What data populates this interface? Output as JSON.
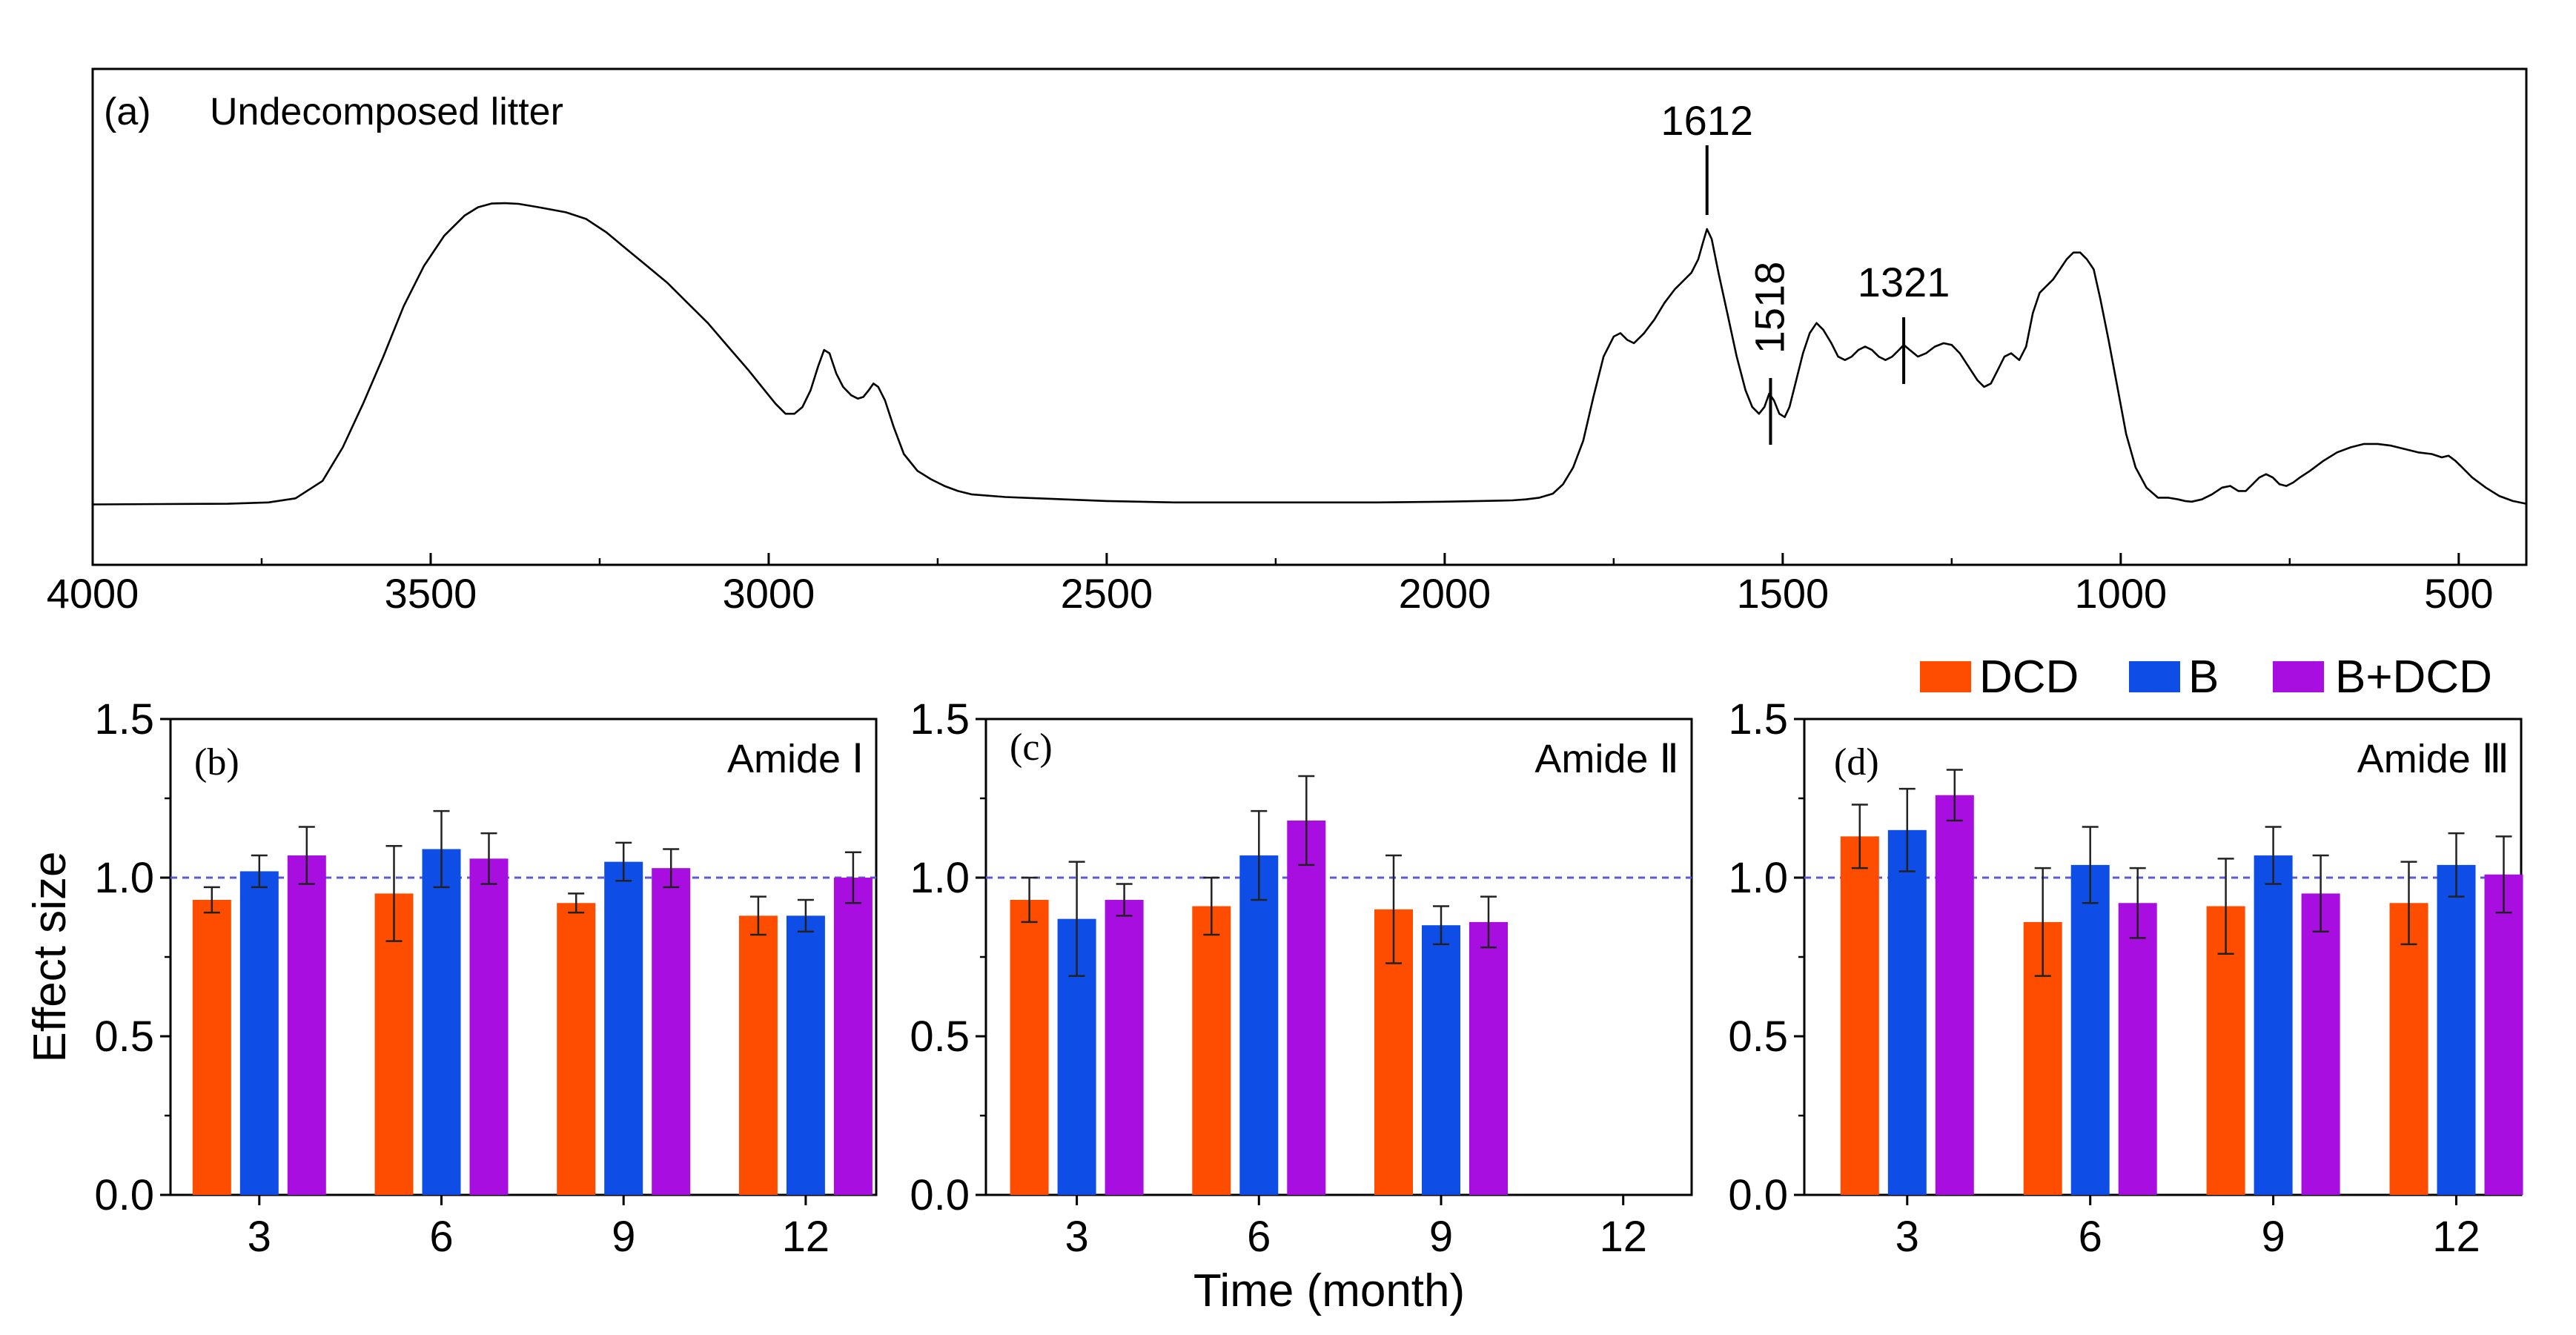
{
  "chart_data": [
    {
      "panel": "a",
      "type": "line",
      "panel_label": "(a)",
      "title": "Undecomposed litter",
      "xlim": [
        4000,
        400
      ],
      "x_ticks": [
        4000,
        3500,
        3000,
        2500,
        2000,
        1500,
        1000,
        500
      ],
      "series": [
        {
          "name": "Undecomposed litter spectrum",
          "points": [
            [
              4000,
              0.01
            ],
            [
              3900,
              0.011
            ],
            [
              3800,
              0.012
            ],
            [
              3740,
              0.016
            ],
            [
              3700,
              0.028
            ],
            [
              3660,
              0.08
            ],
            [
              3630,
              0.18
            ],
            [
              3600,
              0.31
            ],
            [
              3570,
              0.45
            ],
            [
              3540,
              0.6
            ],
            [
              3510,
              0.72
            ],
            [
              3480,
              0.81
            ],
            [
              3450,
              0.87
            ],
            [
              3430,
              0.895
            ],
            [
              3410,
              0.906
            ],
            [
              3390,
              0.907
            ],
            [
              3370,
              0.905
            ],
            [
              3340,
              0.895
            ],
            [
              3300,
              0.88
            ],
            [
              3270,
              0.86
            ],
            [
              3240,
              0.82
            ],
            [
              3210,
              0.77
            ],
            [
              3180,
              0.72
            ],
            [
              3150,
              0.67
            ],
            [
              3120,
              0.61
            ],
            [
              3090,
              0.55
            ],
            [
              3060,
              0.48
            ],
            [
              3030,
              0.41
            ],
            [
              3010,
              0.36
            ],
            [
              2990,
              0.31
            ],
            [
              2975,
              0.28
            ],
            [
              2962,
              0.28
            ],
            [
              2950,
              0.3
            ],
            [
              2938,
              0.35
            ],
            [
              2927,
              0.42
            ],
            [
              2918,
              0.47
            ],
            [
              2910,
              0.46
            ],
            [
              2900,
              0.4
            ],
            [
              2890,
              0.36
            ],
            [
              2878,
              0.335
            ],
            [
              2868,
              0.325
            ],
            [
              2860,
              0.33
            ],
            [
              2852,
              0.35
            ],
            [
              2845,
              0.37
            ],
            [
              2838,
              0.36
            ],
            [
              2828,
              0.32
            ],
            [
              2815,
              0.24
            ],
            [
              2800,
              0.16
            ],
            [
              2780,
              0.11
            ],
            [
              2760,
              0.085
            ],
            [
              2740,
              0.065
            ],
            [
              2720,
              0.05
            ],
            [
              2700,
              0.04
            ],
            [
              2650,
              0.032
            ],
            [
              2600,
              0.028
            ],
            [
              2500,
              0.02
            ],
            [
              2400,
              0.016
            ],
            [
              2300,
              0.016
            ],
            [
              2200,
              0.016
            ],
            [
              2100,
              0.016
            ],
            [
              2000,
              0.018
            ],
            [
              1950,
              0.02
            ],
            [
              1900,
              0.022
            ],
            [
              1880,
              0.025
            ],
            [
              1860,
              0.03
            ],
            [
              1840,
              0.042
            ],
            [
              1825,
              0.07
            ],
            [
              1810,
              0.12
            ],
            [
              1795,
              0.2
            ],
            [
              1780,
              0.33
            ],
            [
              1765,
              0.45
            ],
            [
              1750,
              0.51
            ],
            [
              1740,
              0.52
            ],
            [
              1730,
              0.5
            ],
            [
              1720,
              0.49
            ],
            [
              1705,
              0.52
            ],
            [
              1690,
              0.56
            ],
            [
              1675,
              0.61
            ],
            [
              1660,
              0.65
            ],
            [
              1645,
              0.68
            ],
            [
              1635,
              0.7
            ],
            [
              1625,
              0.74
            ],
            [
              1618,
              0.79
            ],
            [
              1612,
              0.83
            ],
            [
              1605,
              0.8
            ],
            [
              1595,
              0.7
            ],
            [
              1582,
              0.58
            ],
            [
              1568,
              0.45
            ],
            [
              1555,
              0.35
            ],
            [
              1545,
              0.3
            ],
            [
              1535,
              0.28
            ],
            [
              1527,
              0.3
            ],
            [
              1520,
              0.34
            ],
            [
              1513,
              0.32
            ],
            [
              1505,
              0.28
            ],
            [
              1497,
              0.27
            ],
            [
              1490,
              0.3
            ],
            [
              1480,
              0.38
            ],
            [
              1470,
              0.46
            ],
            [
              1460,
              0.52
            ],
            [
              1450,
              0.55
            ],
            [
              1440,
              0.53
            ],
            [
              1428,
              0.49
            ],
            [
              1418,
              0.45
            ],
            [
              1408,
              0.44
            ],
            [
              1398,
              0.45
            ],
            [
              1388,
              0.47
            ],
            [
              1378,
              0.48
            ],
            [
              1368,
              0.47
            ],
            [
              1358,
              0.45
            ],
            [
              1348,
              0.44
            ],
            [
              1338,
              0.45
            ],
            [
              1328,
              0.47
            ],
            [
              1321,
              0.485
            ],
            [
              1312,
              0.47
            ],
            [
              1300,
              0.45
            ],
            [
              1288,
              0.46
            ],
            [
              1275,
              0.48
            ],
            [
              1262,
              0.49
            ],
            [
              1250,
              0.485
            ],
            [
              1238,
              0.46
            ],
            [
              1225,
              0.42
            ],
            [
              1212,
              0.38
            ],
            [
              1202,
              0.36
            ],
            [
              1192,
              0.37
            ],
            [
              1182,
              0.41
            ],
            [
              1172,
              0.45
            ],
            [
              1162,
              0.46
            ],
            [
              1150,
              0.44
            ],
            [
              1140,
              0.48
            ],
            [
              1130,
              0.58
            ],
            [
              1120,
              0.64
            ],
            [
              1110,
              0.66
            ],
            [
              1100,
              0.68
            ],
            [
              1090,
              0.71
            ],
            [
              1080,
              0.74
            ],
            [
              1070,
              0.76
            ],
            [
              1060,
              0.76
            ],
            [
              1050,
              0.74
            ],
            [
              1040,
              0.71
            ],
            [
              1030,
              0.62
            ],
            [
              1018,
              0.5
            ],
            [
              1005,
              0.36
            ],
            [
              992,
              0.22
            ],
            [
              978,
              0.12
            ],
            [
              962,
              0.06
            ],
            [
              945,
              0.03
            ],
            [
              930,
              0.03
            ],
            [
              915,
              0.025
            ],
            [
              905,
              0.02
            ],
            [
              895,
              0.018
            ],
            [
              880,
              0.025
            ],
            [
              865,
              0.04
            ],
            [
              850,
              0.06
            ],
            [
              838,
              0.065
            ],
            [
              826,
              0.05
            ],
            [
              815,
              0.05
            ],
            [
              805,
              0.07
            ],
            [
              795,
              0.09
            ],
            [
              785,
              0.1
            ],
            [
              775,
              0.09
            ],
            [
              765,
              0.07
            ],
            [
              755,
              0.065
            ],
            [
              745,
              0.075
            ],
            [
              735,
              0.09
            ],
            [
              720,
              0.11
            ],
            [
              700,
              0.14
            ],
            [
              680,
              0.165
            ],
            [
              660,
              0.18
            ],
            [
              640,
              0.19
            ],
            [
              620,
              0.19
            ],
            [
              600,
              0.185
            ],
            [
              580,
              0.175
            ],
            [
              560,
              0.165
            ],
            [
              540,
              0.16
            ],
            [
              525,
              0.15
            ],
            [
              515,
              0.155
            ],
            [
              505,
              0.14
            ],
            [
              495,
              0.12
            ],
            [
              480,
              0.09
            ],
            [
              460,
              0.06
            ],
            [
              440,
              0.035
            ],
            [
              420,
              0.02
            ],
            [
              400,
              0.012
            ]
          ]
        }
      ],
      "annotations": [
        {
          "x": 1612,
          "label": "1612",
          "orientation": "horizontal"
        },
        {
          "x": 1518,
          "label": "1518",
          "orientation": "vertical"
        },
        {
          "x": 1321,
          "label": "1321",
          "orientation": "horizontal"
        }
      ]
    },
    {
      "panel": "b",
      "type": "bar",
      "panel_label": "(b)",
      "title": "Amide Ⅰ",
      "xlabel": "",
      "ylabel": "Effect size",
      "ylim": [
        0.0,
        1.5
      ],
      "y_ticks": [
        "0.0",
        "0.5",
        "1.0",
        "1.5"
      ],
      "reference_line": 1.0,
      "categories": [
        "3",
        "6",
        "9",
        "12"
      ],
      "series": [
        {
          "name": "DCD",
          "values": [
            0.93,
            0.95,
            0.92,
            0.88
          ],
          "errors": [
            0.04,
            0.15,
            0.03,
            0.06
          ]
        },
        {
          "name": "B",
          "values": [
            1.02,
            1.09,
            1.05,
            0.88
          ],
          "errors": [
            0.05,
            0.12,
            0.06,
            0.05
          ]
        },
        {
          "name": "B+DCD",
          "values": [
            1.07,
            1.06,
            1.03,
            1.0
          ],
          "errors": [
            0.09,
            0.08,
            0.06,
            0.08
          ]
        }
      ]
    },
    {
      "panel": "c",
      "type": "bar",
      "panel_label": "(c)",
      "title": "Amide Ⅱ",
      "xlabel": "Time (month)",
      "ylabel": "",
      "ylim": [
        0.0,
        1.5
      ],
      "y_ticks": [
        "0.0",
        "0.5",
        "1.0",
        "1.5"
      ],
      "reference_line": 1.0,
      "categories": [
        "3",
        "6",
        "9",
        "12"
      ],
      "series": [
        {
          "name": "DCD",
          "values": [
            0.93,
            0.91,
            0.9,
            null
          ],
          "errors": [
            0.07,
            0.09,
            0.17,
            null
          ]
        },
        {
          "name": "B",
          "values": [
            0.87,
            1.07,
            0.85,
            null
          ],
          "errors": [
            0.18,
            0.14,
            0.06,
            null
          ]
        },
        {
          "name": "B+DCD",
          "values": [
            0.93,
            1.18,
            0.86,
            null
          ],
          "errors": [
            0.05,
            0.14,
            0.08,
            null
          ]
        }
      ]
    },
    {
      "panel": "d",
      "type": "bar",
      "panel_label": "(d)",
      "title": "Amide Ⅲ",
      "xlabel": "",
      "ylabel": "",
      "ylim": [
        0.0,
        1.5
      ],
      "y_ticks": [
        "0.0",
        "0.5",
        "1.0",
        "1.5"
      ],
      "reference_line": 1.0,
      "categories": [
        "3",
        "6",
        "9",
        "12"
      ],
      "series": [
        {
          "name": "DCD",
          "values": [
            1.13,
            0.86,
            0.91,
            0.92
          ],
          "errors": [
            0.1,
            0.17,
            0.15,
            0.13
          ]
        },
        {
          "name": "B",
          "values": [
            1.15,
            1.04,
            1.07,
            1.04
          ],
          "errors": [
            0.13,
            0.12,
            0.09,
            0.1
          ]
        },
        {
          "name": "B+DCD",
          "values": [
            1.26,
            0.92,
            0.95,
            1.01
          ],
          "errors": [
            0.08,
            0.11,
            0.12,
            0.12
          ]
        }
      ]
    }
  ],
  "legend": {
    "placement": "top-right",
    "items": [
      {
        "label": "DCD",
        "color": "#ff4d00"
      },
      {
        "label": "B",
        "color": "#0e4de6"
      },
      {
        "label": "B+DCD",
        "color": "#a80ee0"
      }
    ]
  },
  "colors": {
    "spectrum_line": "#000000",
    "reference_line": "#5a5ad8"
  }
}
